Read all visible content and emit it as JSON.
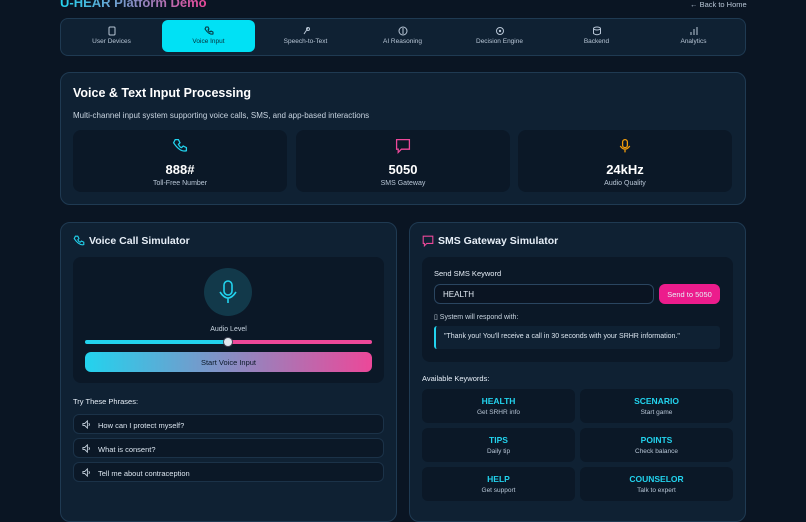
{
  "header": {
    "title": "U-HEAR Platform Demo",
    "back_link": "← Back to Home"
  },
  "tabs": [
    "User Devices",
    "Voice Input",
    "Speech-to-Text",
    "AI Reasoning",
    "Decision Engine",
    "Backend",
    "Analytics"
  ],
  "input_section": {
    "title": "Voice & Text Input Processing",
    "description": "Multi-channel input system supporting voice calls, SMS, and app-based interactions",
    "stats": [
      {
        "value": "888#",
        "label": "Toll-Free Number"
      },
      {
        "value": "5050",
        "label": "SMS Gateway"
      },
      {
        "value": "24kHz",
        "label": "Audio Quality"
      }
    ]
  },
  "voice": {
    "title": "Voice Call Simulator",
    "audio_level_label": "Audio Level",
    "button": "Start Voice Input",
    "phrases_title": "Try These Phrases:",
    "phrases": [
      "How can I protect myself?",
      "What is consent?",
      "Tell me about contraception"
    ]
  },
  "sms": {
    "title": "SMS Gateway Simulator",
    "keyword_label": "Send SMS Keyword",
    "input_value": "HEALTH",
    "button": "Send to 5050",
    "respond_label": "System will respond with:",
    "response": "\"Thank you! You'll receive a call in 30 seconds with your SRHR information.\"",
    "keywords_title": "Available Keywords:",
    "keywords": [
      {
        "name": "HEALTH",
        "description": "Get SRHR info"
      },
      {
        "name": "SCENARIO",
        "description": "Start game"
      },
      {
        "name": "TIPS",
        "description": "Daily tip"
      },
      {
        "name": "POINTS",
        "description": "Check balance"
      },
      {
        "name": "HELP",
        "description": "Get support"
      },
      {
        "name": "COUNSELOR",
        "description": "Talk to expert"
      }
    ]
  }
}
